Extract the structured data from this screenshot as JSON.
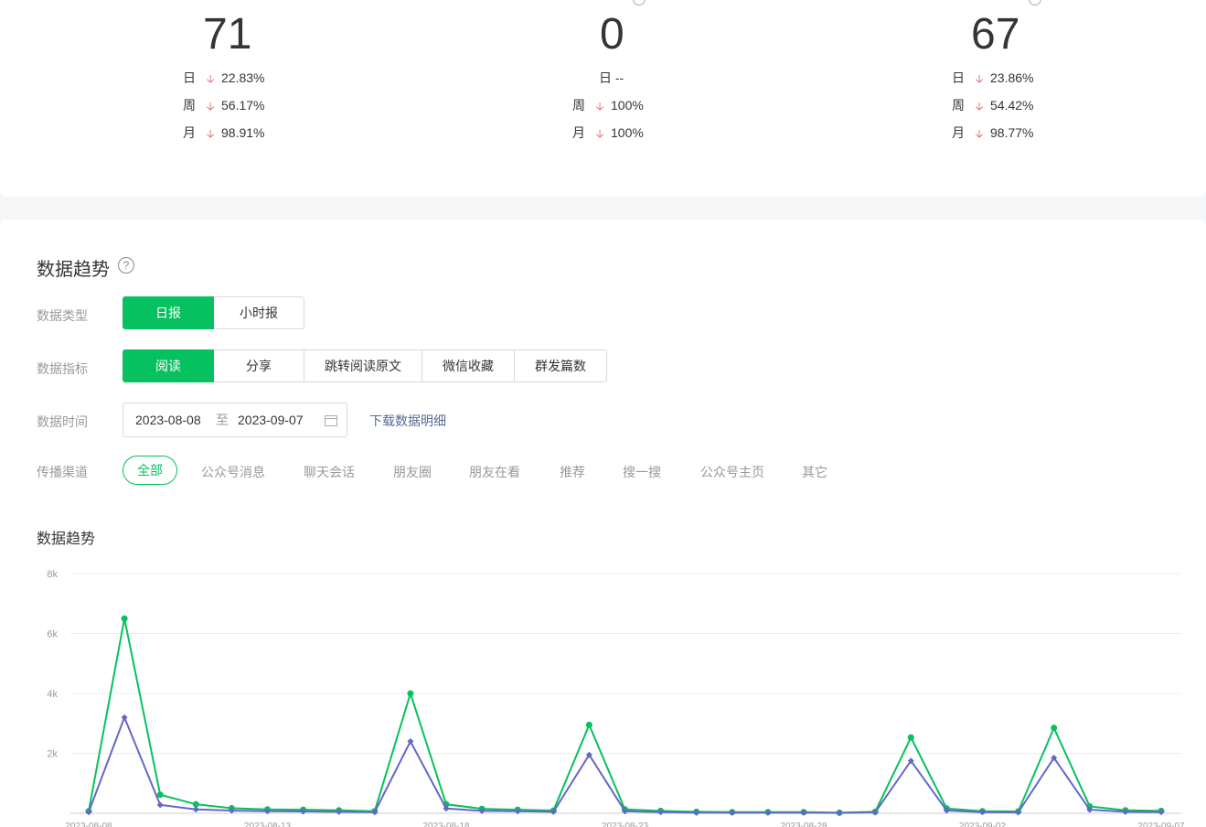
{
  "kpis": [
    {
      "value": "71",
      "day_label": "日",
      "day_pct": "22.83%",
      "week_label": "周",
      "week_pct": "56.17%",
      "month_label": "月",
      "month_pct": "98.91%"
    },
    {
      "value": "0",
      "day_label": "日",
      "day_pct": "--",
      "week_label": "周",
      "week_pct": "100%",
      "month_label": "月",
      "month_pct": "100%"
    },
    {
      "value": "67",
      "day_label": "日",
      "day_pct": "23.86%",
      "week_label": "周",
      "week_pct": "54.42%",
      "month_label": "月",
      "month_pct": "98.77%"
    }
  ],
  "trend": {
    "title": "数据趋势",
    "help_icon": "?",
    "data_type": {
      "label": "数据类型",
      "options": [
        "日报",
        "小时报"
      ],
      "selected": "日报"
    },
    "metric": {
      "label": "数据指标",
      "options": [
        "阅读",
        "分享",
        "跳转阅读原文",
        "微信收藏",
        "群发篇数"
      ],
      "selected": "阅读"
    },
    "time": {
      "label": "数据时间",
      "start": "2023-08-08",
      "to": "至",
      "end": "2023-09-07",
      "download": "下载数据明细"
    },
    "channel": {
      "label": "传播渠道",
      "options": [
        "全部",
        "公众号消息",
        "聊天会话",
        "朋友圈",
        "朋友在看",
        "推荐",
        "搜一搜",
        "公众号主页",
        "其它"
      ],
      "selected": "全部"
    },
    "chart_title": "数据趋势"
  },
  "chart_data": {
    "type": "line",
    "y_ticks": [
      "8k",
      "6k",
      "4k",
      "2k"
    ],
    "ylim": [
      0,
      8000
    ],
    "x_tick_labels": [
      "2023-08-08",
      "2023-08-13",
      "2023-08-18",
      "2023-08-23",
      "2023-08-28",
      "2023-09-02",
      "2023-09-07"
    ],
    "x": [
      "2023-08-08",
      "2023-08-09",
      "2023-08-10",
      "2023-08-11",
      "2023-08-12",
      "2023-08-13",
      "2023-08-14",
      "2023-08-15",
      "2023-08-16",
      "2023-08-17",
      "2023-08-18",
      "2023-08-19",
      "2023-08-20",
      "2023-08-21",
      "2023-08-22",
      "2023-08-23",
      "2023-08-24",
      "2023-08-25",
      "2023-08-26",
      "2023-08-27",
      "2023-08-28",
      "2023-08-29",
      "2023-08-30",
      "2023-08-31",
      "2023-09-01",
      "2023-09-02",
      "2023-09-03",
      "2023-09-04",
      "2023-09-05",
      "2023-09-06",
      "2023-09-07"
    ],
    "series": [
      {
        "color": "#07c160",
        "values": [
          70,
          6500,
          620,
          300,
          170,
          130,
          120,
          100,
          70,
          4000,
          300,
          150,
          120,
          90,
          2950,
          130,
          80,
          50,
          40,
          40,
          40,
          20,
          50,
          2530,
          160,
          70,
          60,
          2850,
          230,
          100,
          80
        ]
      },
      {
        "color": "#6467c7",
        "values": [
          40,
          3200,
          280,
          130,
          90,
          70,
          60,
          50,
          40,
          2400,
          160,
          80,
          70,
          50,
          1950,
          70,
          40,
          20,
          20,
          20,
          20,
          10,
          30,
          1750,
          90,
          40,
          30,
          1850,
          120,
          50,
          40
        ]
      }
    ]
  }
}
